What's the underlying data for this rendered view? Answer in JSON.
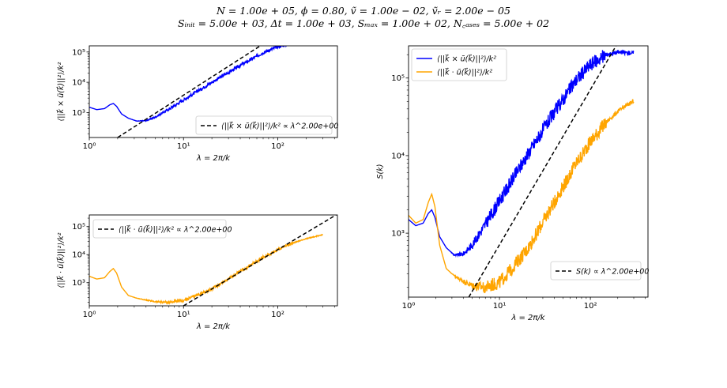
{
  "figure": {
    "suptitle_line1": "N = 1.00e + 05, ϕ = 0.80, ṽ = 1.00e − 02, ṽᵣ = 2.00e − 05",
    "suptitle_line2": "Sᵢₙᵢₜ = 5.00e + 03, Δt = 1.00e + 03, Sₘₐₓ = 1.00e + 02, N꜀ₐₛₑₛ = 5.00e + 02",
    "colors": {
      "blue": "#0000ff",
      "orange": "#ffa500",
      "fit": "#000000"
    }
  },
  "chart_data": [
    {
      "id": "top-left",
      "type": "line",
      "xscale": "log",
      "yscale": "log",
      "xlim": [
        1,
        430
      ],
      "ylim": [
        150,
        160000
      ],
      "xlabel": "λ = 2π/k",
      "ylabel": "⟨||k⃗ × ũ(k⃗)||²⟩/k²",
      "xticks": [
        {
          "v": 1,
          "label": "10⁰"
        },
        {
          "v": 10,
          "label": "10¹"
        },
        {
          "v": 100,
          "label": "10²"
        }
      ],
      "yticks": [
        {
          "v": 1000,
          "label": "10³"
        },
        {
          "v": 10000,
          "label": "10⁴"
        },
        {
          "v": 100000,
          "label": "10⁵"
        }
      ],
      "legend": "lower-right",
      "series": [
        {
          "name": "",
          "color": "#0000ff",
          "style": "solid",
          "noise": 0.05,
          "x": [
            1.0,
            1.2,
            1.45,
            1.65,
            1.8,
            1.95,
            2.2,
            2.6,
            3.2,
            4.0,
            5.0,
            7.0,
            10,
            20,
            40,
            70,
            100,
            150,
            200,
            300
          ],
          "y": [
            1500,
            1250,
            1350,
            1800,
            2000,
            1600,
            900,
            650,
            520,
            540,
            700,
            1300,
            2600,
            10000,
            36000,
            95000,
            150000,
            200000,
            215000,
            210000
          ]
        },
        {
          "name": "⟨||k⃗ × ũ(k⃗)||²⟩/k² ∝ λ^2.00e+00",
          "color": "#000000",
          "style": "dashed",
          "x": [
            2.0,
            110
          ],
          "y": [
            150,
            453750
          ]
        }
      ]
    },
    {
      "id": "bottom-left",
      "type": "line",
      "xscale": "log",
      "yscale": "log",
      "xlim": [
        1,
        430
      ],
      "ylim": [
        150,
        260000
      ],
      "xlabel": "λ = 2π/k",
      "ylabel": "⟨||k⃗ ⋅ ũ(k⃗)||²⟩/k²",
      "xticks": [
        {
          "v": 1,
          "label": "10⁰"
        },
        {
          "v": 10,
          "label": "10¹"
        },
        {
          "v": 100,
          "label": "10²"
        }
      ],
      "yticks": [
        {
          "v": 1000,
          "label": "10³"
        },
        {
          "v": 10000,
          "label": "10⁴"
        },
        {
          "v": 100000,
          "label": "10⁵"
        }
      ],
      "legend": "upper-left",
      "series": [
        {
          "name": "",
          "color": "#ffa500",
          "style": "solid",
          "noise": 0.05,
          "x": [
            1.0,
            1.2,
            1.45,
            1.65,
            1.8,
            1.95,
            2.2,
            2.6,
            3.2,
            4.0,
            5.0,
            7.0,
            10,
            20,
            40,
            70,
            100,
            150,
            200,
            300
          ],
          "y": [
            1700,
            1350,
            1500,
            2500,
            3200,
            2200,
            700,
            350,
            280,
            240,
            210,
            200,
            230,
            600,
            2500,
            8000,
            15000,
            27000,
            37000,
            51000
          ]
        },
        {
          "name": "⟨||k⃗ ⋅ ũ(k⃗)||²⟩/k² ∝ λ^2.00e+00",
          "color": "#000000",
          "style": "dashed",
          "x": [
            10,
            450
          ],
          "y": [
            150,
            303750
          ]
        }
      ]
    },
    {
      "id": "right",
      "type": "line",
      "xscale": "log",
      "yscale": "log",
      "xlim": [
        1,
        430
      ],
      "ylim": [
        150,
        260000
      ],
      "xlabel": "λ = 2π/k",
      "ylabel": "S(k)",
      "xticks": [
        {
          "v": 1,
          "label": "10⁰"
        },
        {
          "v": 10,
          "label": "10¹"
        },
        {
          "v": 100,
          "label": "10²"
        }
      ],
      "yticks": [
        {
          "v": 1000,
          "label": "10³"
        },
        {
          "v": 10000,
          "label": "10⁴"
        },
        {
          "v": 100000,
          "label": "10⁵"
        }
      ],
      "legend": "top-left + lower-right",
      "series": [
        {
          "name": "⟨||k⃗ × ũ(k⃗)||²⟩/k²",
          "color": "#0000ff",
          "style": "solid",
          "noise": 0.09,
          "legend_group": "top",
          "x": [
            1.0,
            1.2,
            1.45,
            1.65,
            1.8,
            1.95,
            2.2,
            2.6,
            3.2,
            4.0,
            5.0,
            7.0,
            10,
            20,
            40,
            70,
            100,
            150,
            200,
            300
          ],
          "y": [
            1500,
            1250,
            1350,
            1800,
            2000,
            1600,
            900,
            650,
            520,
            540,
            700,
            1300,
            2600,
            10000,
            36000,
            95000,
            150000,
            200000,
            215000,
            210000
          ]
        },
        {
          "name": "⟨||k⃗ ⋅ ũ(k⃗)||²⟩/k²",
          "color": "#ffa500",
          "style": "solid",
          "noise": 0.09,
          "legend_group": "top",
          "x": [
            1.0,
            1.2,
            1.45,
            1.65,
            1.8,
            1.95,
            2.2,
            2.6,
            3.2,
            4.0,
            5.0,
            7.0,
            10,
            20,
            40,
            70,
            100,
            150,
            200,
            300
          ],
          "y": [
            1700,
            1350,
            1500,
            2500,
            3200,
            2200,
            700,
            350,
            280,
            240,
            210,
            200,
            230,
            600,
            2500,
            8000,
            15000,
            27000,
            37000,
            51000
          ]
        },
        {
          "name": "S(k) ∝ λ^2.00e+00",
          "color": "#000000",
          "style": "dashed",
          "legend_group": "bottom",
          "x": [
            4.6,
            200
          ],
          "y": [
            150,
            283550
          ]
        }
      ]
    }
  ]
}
